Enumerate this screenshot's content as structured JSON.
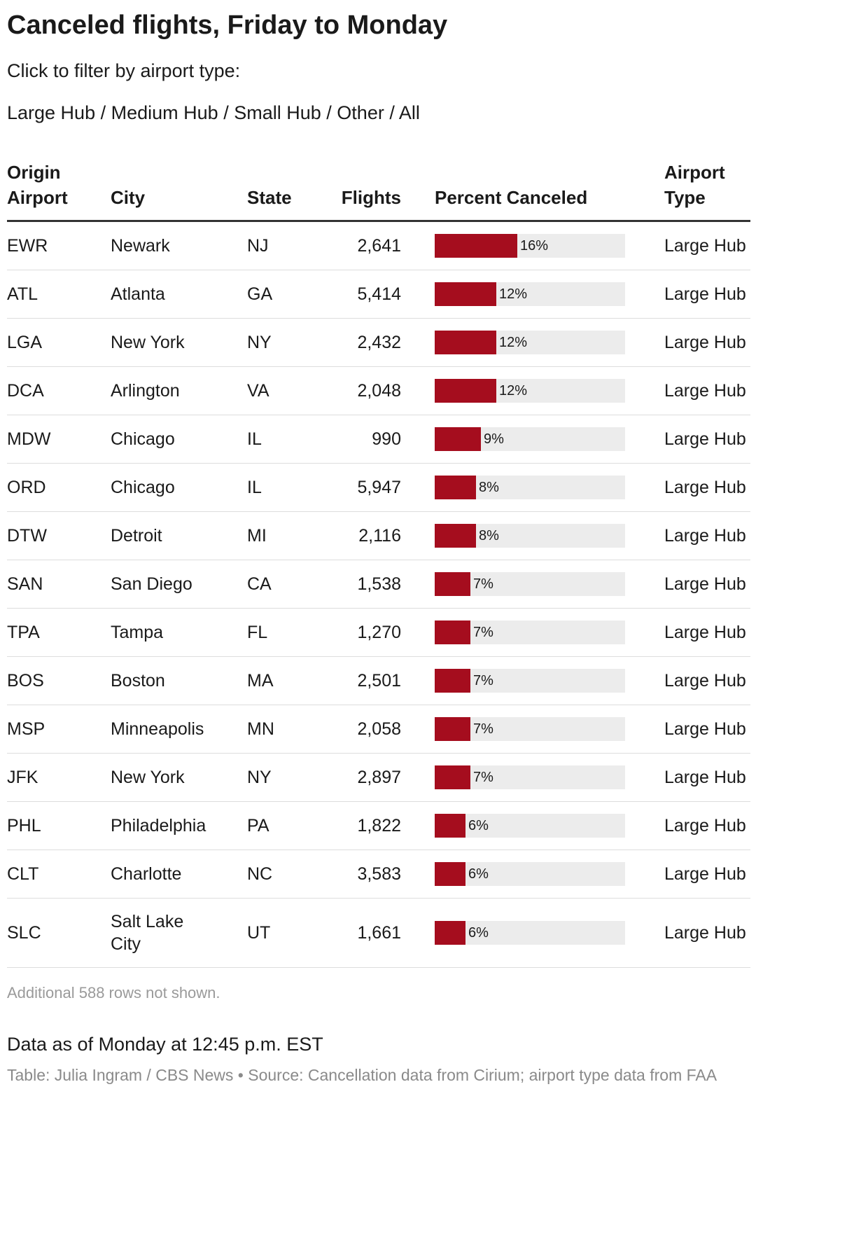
{
  "title": "Canceled flights, Friday to Monday",
  "filter_prompt": "Click to filter by airport type:",
  "filters": [
    "Large Hub",
    "Medium Hub",
    "Small Hub",
    "Other",
    "All"
  ],
  "filter_separator": "/",
  "columns": [
    "Origin Airport",
    "City",
    "State",
    "Flights",
    "Percent Canceled",
    "Airport Type"
  ],
  "bar_max_percent": 100,
  "bar_color": "#a50d1e",
  "bar_track_color": "#ececec",
  "rows": [
    {
      "airport": "EWR",
      "city": "Newark",
      "state": "NJ",
      "flights": "2,641",
      "pct": 16,
      "pct_label": "16%",
      "type": "Large Hub"
    },
    {
      "airport": "ATL",
      "city": "Atlanta",
      "state": "GA",
      "flights": "5,414",
      "pct": 12,
      "pct_label": "12%",
      "type": "Large Hub"
    },
    {
      "airport": "LGA",
      "city": "New York",
      "state": "NY",
      "flights": "2,432",
      "pct": 12,
      "pct_label": "12%",
      "type": "Large Hub"
    },
    {
      "airport": "DCA",
      "city": "Arlington",
      "state": "VA",
      "flights": "2,048",
      "pct": 12,
      "pct_label": "12%",
      "type": "Large Hub"
    },
    {
      "airport": "MDW",
      "city": "Chicago",
      "state": "IL",
      "flights": "990",
      "pct": 9,
      "pct_label": "9%",
      "type": "Large Hub"
    },
    {
      "airport": "ORD",
      "city": "Chicago",
      "state": "IL",
      "flights": "5,947",
      "pct": 8,
      "pct_label": "8%",
      "type": "Large Hub"
    },
    {
      "airport": "DTW",
      "city": "Detroit",
      "state": "MI",
      "flights": "2,116",
      "pct": 8,
      "pct_label": "8%",
      "type": "Large Hub"
    },
    {
      "airport": "SAN",
      "city": "San Diego",
      "state": "CA",
      "flights": "1,538",
      "pct": 7,
      "pct_label": "7%",
      "type": "Large Hub"
    },
    {
      "airport": "TPA",
      "city": "Tampa",
      "state": "FL",
      "flights": "1,270",
      "pct": 7,
      "pct_label": "7%",
      "type": "Large Hub"
    },
    {
      "airport": "BOS",
      "city": "Boston",
      "state": "MA",
      "flights": "2,501",
      "pct": 7,
      "pct_label": "7%",
      "type": "Large Hub"
    },
    {
      "airport": "MSP",
      "city": "Minneapolis",
      "state": "MN",
      "flights": "2,058",
      "pct": 7,
      "pct_label": "7%",
      "type": "Large Hub"
    },
    {
      "airport": "JFK",
      "city": "New York",
      "state": "NY",
      "flights": "2,897",
      "pct": 7,
      "pct_label": "7%",
      "type": "Large Hub"
    },
    {
      "airport": "PHL",
      "city": "Philadelphia",
      "state": "PA",
      "flights": "1,822",
      "pct": 6,
      "pct_label": "6%",
      "type": "Large Hub"
    },
    {
      "airport": "CLT",
      "city": "Charlotte",
      "state": "NC",
      "flights": "3,583",
      "pct": 6,
      "pct_label": "6%",
      "type": "Large Hub"
    },
    {
      "airport": "SLC",
      "city": "Salt Lake City",
      "state": "UT",
      "flights": "1,661",
      "pct": 6,
      "pct_label": "6%",
      "type": "Large Hub"
    }
  ],
  "not_shown": "Additional 588 rows not shown.",
  "as_of": "Data as of Monday at 12:45 p.m. EST",
  "credit": "Table: Julia Ingram / CBS News • Source: Cancellation data from Cirium; airport type data from FAA"
}
